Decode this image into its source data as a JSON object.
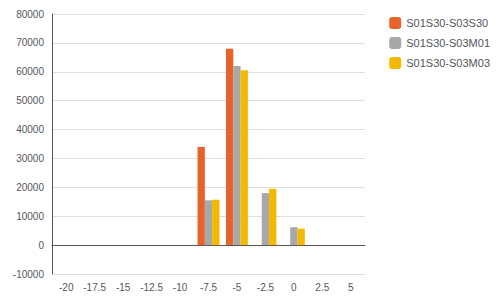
{
  "chart_data": {
    "type": "bar",
    "categories": [
      "-20",
      "-17.5",
      "-15",
      "-12.5",
      "-10",
      "-7.5",
      "-5",
      "-2.5",
      "0",
      "2.5",
      "5"
    ],
    "series": [
      {
        "name": "S01S30-S03S30",
        "color": "#E8632A",
        "values": [
          0,
          0,
          0,
          0,
          0,
          34000,
          68000,
          0,
          0,
          0,
          0
        ]
      },
      {
        "name": "S01S30-S03M01",
        "color": "#A8A8A8",
        "values": [
          0,
          0,
          0,
          0,
          0,
          15500,
          62000,
          18000,
          6200,
          0,
          0
        ]
      },
      {
        "name": "S01S30-S03M03",
        "color": "#F5B800",
        "values": [
          0,
          0,
          0,
          0,
          0,
          15700,
          60500,
          19500,
          5700,
          0,
          0
        ]
      }
    ],
    "ylim": [
      -10000,
      80000
    ],
    "yticks": [
      -10000,
      0,
      10000,
      20000,
      30000,
      40000,
      50000,
      60000,
      70000,
      80000
    ],
    "grid": true,
    "legend": "right"
  }
}
